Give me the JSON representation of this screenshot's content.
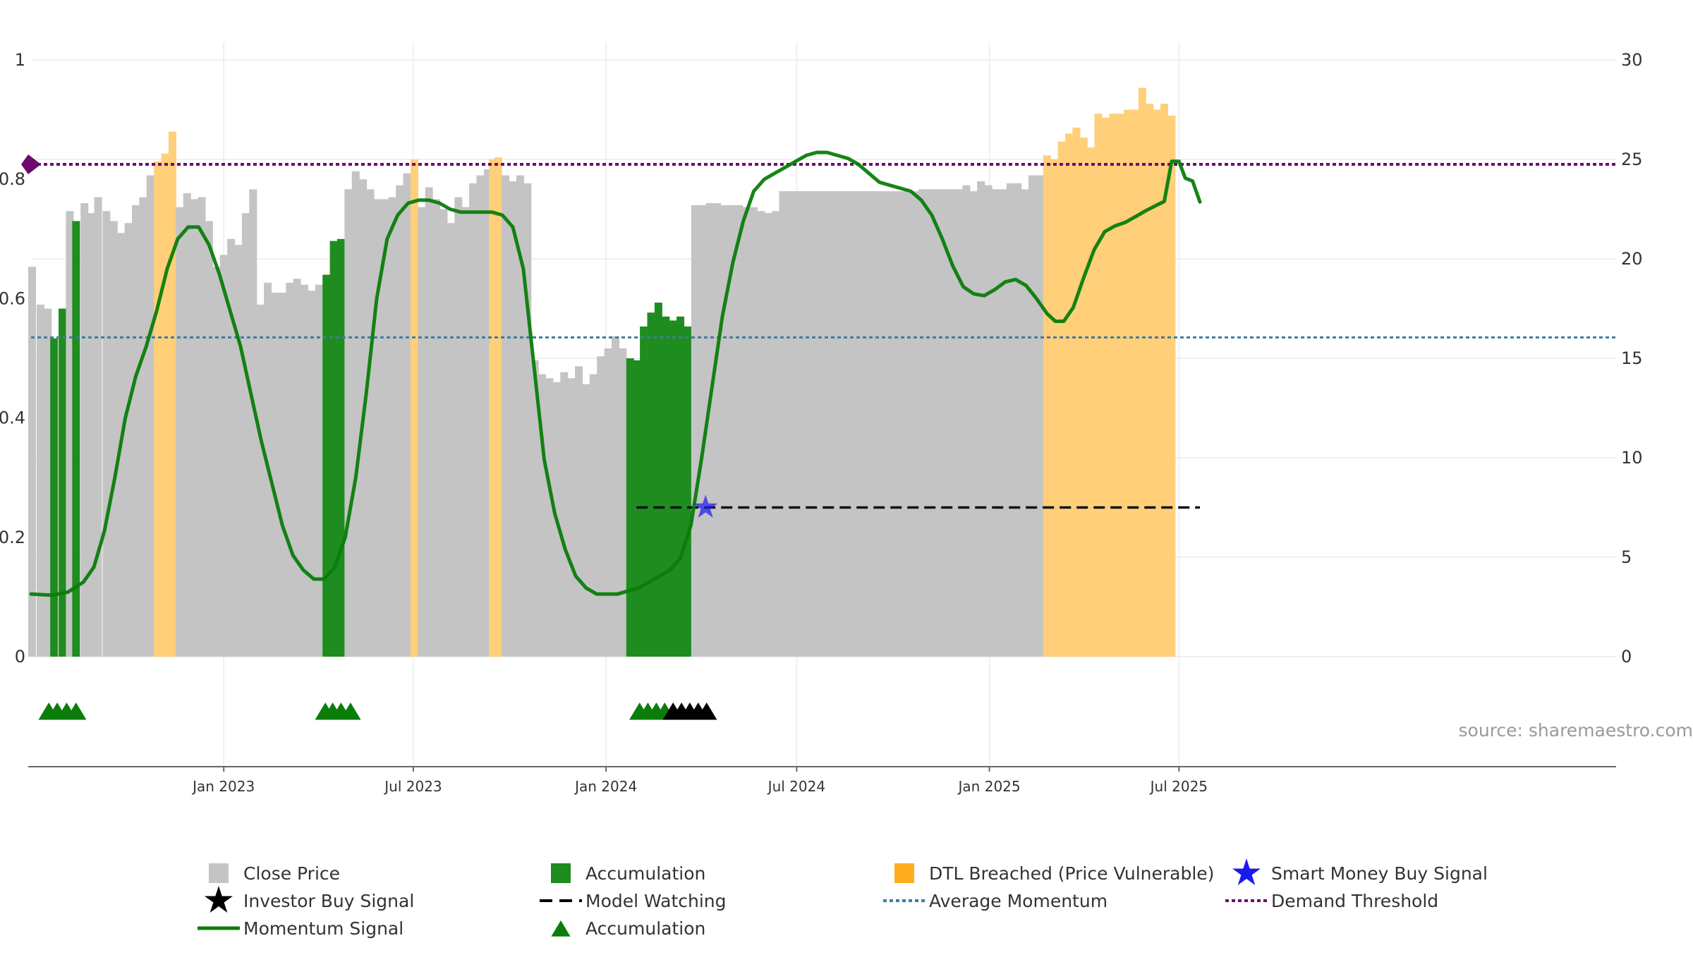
{
  "chart_data": {
    "type": "bar",
    "source_text": "source: sharemaestro.com",
    "x_ticks": [
      "Jan 2023",
      "Jul 2023",
      "Jan 2024",
      "Jul 2024",
      "Jan 2025",
      "Jul 2025"
    ],
    "left_axis": {
      "range": [
        0,
        1
      ],
      "ticks": [
        "0",
        "0.2",
        "0.4",
        "0.6",
        "0.8",
        "1"
      ]
    },
    "right_axis": {
      "range": [
        0,
        30
      ],
      "ticks": [
        "0",
        "5",
        "10",
        "15",
        "20",
        "25",
        "30"
      ]
    },
    "grid": true,
    "legend_position": "bottom",
    "x_range_days": [
      0,
      1052
    ],
    "bars": [
      {
        "x": 1,
        "v": 19.6,
        "c": "gray"
      },
      {
        "x": 9,
        "v": 17.7,
        "c": "gray"
      },
      {
        "x": 16,
        "v": 17.5,
        "c": "gray"
      },
      {
        "x": 22,
        "v": 16.0,
        "c": "green"
      },
      {
        "x": 30,
        "v": 17.5,
        "c": "green"
      },
      {
        "x": 37,
        "v": 22.4,
        "c": "gray"
      },
      {
        "x": 43,
        "v": 21.9,
        "c": "green"
      },
      {
        "x": 51,
        "v": 22.8,
        "c": "gray"
      },
      {
        "x": 58,
        "v": 22.3,
        "c": "gray"
      },
      {
        "x": 64,
        "v": 23.1,
        "c": "gray"
      },
      {
        "x": 72,
        "v": 22.4,
        "c": "gray"
      },
      {
        "x": 79,
        "v": 21.9,
        "c": "gray"
      },
      {
        "x": 86,
        "v": 21.3,
        "c": "gray"
      },
      {
        "x": 93,
        "v": 21.8,
        "c": "gray"
      },
      {
        "x": 100,
        "v": 22.7,
        "c": "gray"
      },
      {
        "x": 107,
        "v": 23.1,
        "c": "gray"
      },
      {
        "x": 114,
        "v": 24.2,
        "c": "gray"
      },
      {
        "x": 121,
        "v": 24.9,
        "c": "orange"
      },
      {
        "x": 128,
        "v": 25.3,
        "c": "orange"
      },
      {
        "x": 135,
        "v": 26.4,
        "c": "orange"
      },
      {
        "x": 142,
        "v": 22.6,
        "c": "gray"
      },
      {
        "x": 149,
        "v": 23.3,
        "c": "gray"
      },
      {
        "x": 156,
        "v": 23.0,
        "c": "gray"
      },
      {
        "x": 163,
        "v": 23.1,
        "c": "gray"
      },
      {
        "x": 170,
        "v": 21.9,
        "c": "gray"
      },
      {
        "x": 177,
        "v": 19.6,
        "c": "gray"
      },
      {
        "x": 184,
        "v": 20.2,
        "c": "gray"
      },
      {
        "x": 191,
        "v": 21.0,
        "c": "gray"
      },
      {
        "x": 198,
        "v": 20.7,
        "c": "gray"
      },
      {
        "x": 205,
        "v": 22.3,
        "c": "gray"
      },
      {
        "x": 212,
        "v": 23.5,
        "c": "gray"
      },
      {
        "x": 219,
        "v": 17.7,
        "c": "gray"
      },
      {
        "x": 226,
        "v": 18.8,
        "c": "gray"
      },
      {
        "x": 233,
        "v": 18.3,
        "c": "gray"
      },
      {
        "x": 240,
        "v": 18.3,
        "c": "gray"
      },
      {
        "x": 247,
        "v": 18.8,
        "c": "gray"
      },
      {
        "x": 254,
        "v": 19.0,
        "c": "gray"
      },
      {
        "x": 261,
        "v": 18.7,
        "c": "gray"
      },
      {
        "x": 268,
        "v": 18.4,
        "c": "gray"
      },
      {
        "x": 275,
        "v": 18.7,
        "c": "gray"
      },
      {
        "x": 282,
        "v": 19.2,
        "c": "green"
      },
      {
        "x": 289,
        "v": 20.9,
        "c": "green"
      },
      {
        "x": 296,
        "v": 21.0,
        "c": "green"
      },
      {
        "x": 303,
        "v": 23.5,
        "c": "gray"
      },
      {
        "x": 310,
        "v": 24.4,
        "c": "gray"
      },
      {
        "x": 317,
        "v": 24.0,
        "c": "gray"
      },
      {
        "x": 324,
        "v": 23.5,
        "c": "gray"
      },
      {
        "x": 331,
        "v": 23.0,
        "c": "gray"
      },
      {
        "x": 338,
        "v": 23.0,
        "c": "gray"
      },
      {
        "x": 345,
        "v": 23.1,
        "c": "gray"
      },
      {
        "x": 352,
        "v": 23.7,
        "c": "gray"
      },
      {
        "x": 359,
        "v": 24.3,
        "c": "gray"
      },
      {
        "x": 366,
        "v": 25.0,
        "c": "orange"
      },
      {
        "x": 373,
        "v": 22.6,
        "c": "gray"
      },
      {
        "x": 380,
        "v": 23.6,
        "c": "gray"
      },
      {
        "x": 387,
        "v": 23.0,
        "c": "gray"
      },
      {
        "x": 394,
        "v": 22.5,
        "c": "gray"
      },
      {
        "x": 401,
        "v": 21.8,
        "c": "gray"
      },
      {
        "x": 408,
        "v": 23.1,
        "c": "gray"
      },
      {
        "x": 415,
        "v": 22.6,
        "c": "gray"
      },
      {
        "x": 422,
        "v": 23.8,
        "c": "gray"
      },
      {
        "x": 429,
        "v": 24.2,
        "c": "gray"
      },
      {
        "x": 436,
        "v": 24.5,
        "c": "gray"
      },
      {
        "x": 441,
        "v": 25.0,
        "c": "orange"
      },
      {
        "x": 446,
        "v": 25.1,
        "c": "orange"
      },
      {
        "x": 453,
        "v": 24.2,
        "c": "gray"
      },
      {
        "x": 460,
        "v": 23.9,
        "c": "gray"
      },
      {
        "x": 467,
        "v": 24.2,
        "c": "gray"
      },
      {
        "x": 474,
        "v": 23.8,
        "c": "gray"
      },
      {
        "x": 481,
        "v": 14.9,
        "c": "gray"
      },
      {
        "x": 488,
        "v": 14.2,
        "c": "gray"
      },
      {
        "x": 495,
        "v": 14.0,
        "c": "gray"
      },
      {
        "x": 502,
        "v": 13.8,
        "c": "gray"
      },
      {
        "x": 509,
        "v": 14.3,
        "c": "gray"
      },
      {
        "x": 516,
        "v": 14.0,
        "c": "gray"
      },
      {
        "x": 523,
        "v": 14.6,
        "c": "gray"
      },
      {
        "x": 530,
        "v": 13.7,
        "c": "gray"
      },
      {
        "x": 537,
        "v": 14.2,
        "c": "gray"
      },
      {
        "x": 544,
        "v": 15.1,
        "c": "gray"
      },
      {
        "x": 551,
        "v": 15.5,
        "c": "gray"
      },
      {
        "x": 558,
        "v": 16.1,
        "c": "gray"
      },
      {
        "x": 565,
        "v": 15.5,
        "c": "gray"
      },
      {
        "x": 572,
        "v": 15.0,
        "c": "green"
      },
      {
        "x": 578,
        "v": 14.9,
        "c": "green"
      },
      {
        "x": 585,
        "v": 16.6,
        "c": "green"
      },
      {
        "x": 592,
        "v": 17.3,
        "c": "green"
      },
      {
        "x": 599,
        "v": 17.8,
        "c": "green"
      },
      {
        "x": 606,
        "v": 17.1,
        "c": "green"
      },
      {
        "x": 613,
        "v": 16.9,
        "c": "green"
      },
      {
        "x": 620,
        "v": 17.1,
        "c": "green"
      },
      {
        "x": 627,
        "v": 16.6,
        "c": "green"
      },
      {
        "x": 634,
        "v": 22.7,
        "c": "gray"
      },
      {
        "x": 641,
        "v": 22.7,
        "c": "gray"
      },
      {
        "x": 648,
        "v": 22.8,
        "c": "gray"
      },
      {
        "x": 655,
        "v": 22.8,
        "c": "gray"
      },
      {
        "x": 662,
        "v": 22.7,
        "c": "gray"
      },
      {
        "x": 669,
        "v": 22.7,
        "c": "gray"
      },
      {
        "x": 676,
        "v": 22.7,
        "c": "gray"
      },
      {
        "x": 683,
        "v": 22.6,
        "c": "gray"
      },
      {
        "x": 690,
        "v": 22.6,
        "c": "gray"
      },
      {
        "x": 697,
        "v": 22.4,
        "c": "gray"
      },
      {
        "x": 704,
        "v": 22.3,
        "c": "gray"
      },
      {
        "x": 711,
        "v": 22.4,
        "c": "gray"
      },
      {
        "x": 718,
        "v": 23.4,
        "c": "gray"
      },
      {
        "x": 725,
        "v": 23.4,
        "c": "gray"
      },
      {
        "x": 732,
        "v": 23.4,
        "c": "gray"
      },
      {
        "x": 739,
        "v": 23.4,
        "c": "gray"
      },
      {
        "x": 746,
        "v": 23.4,
        "c": "gray"
      },
      {
        "x": 753,
        "v": 23.4,
        "c": "gray"
      },
      {
        "x": 760,
        "v": 23.4,
        "c": "gray"
      },
      {
        "x": 767,
        "v": 23.4,
        "c": "gray"
      },
      {
        "x": 774,
        "v": 23.4,
        "c": "gray"
      },
      {
        "x": 781,
        "v": 23.4,
        "c": "gray"
      },
      {
        "x": 788,
        "v": 23.4,
        "c": "gray"
      },
      {
        "x": 795,
        "v": 23.4,
        "c": "gray"
      },
      {
        "x": 802,
        "v": 23.4,
        "c": "gray"
      },
      {
        "x": 809,
        "v": 23.4,
        "c": "gray"
      },
      {
        "x": 816,
        "v": 23.4,
        "c": "gray"
      },
      {
        "x": 823,
        "v": 23.4,
        "c": "gray"
      },
      {
        "x": 830,
        "v": 23.4,
        "c": "gray"
      },
      {
        "x": 837,
        "v": 23.4,
        "c": "gray"
      },
      {
        "x": 844,
        "v": 23.4,
        "c": "gray"
      },
      {
        "x": 851,
        "v": 23.5,
        "c": "gray"
      },
      {
        "x": 858,
        "v": 23.5,
        "c": "gray"
      },
      {
        "x": 865,
        "v": 23.5,
        "c": "gray"
      },
      {
        "x": 872,
        "v": 23.5,
        "c": "gray"
      },
      {
        "x": 879,
        "v": 23.5,
        "c": "gray"
      },
      {
        "x": 886,
        "v": 23.5,
        "c": "gray"
      },
      {
        "x": 893,
        "v": 23.7,
        "c": "gray"
      },
      {
        "x": 900,
        "v": 23.4,
        "c": "gray"
      },
      {
        "x": 907,
        "v": 23.9,
        "c": "gray"
      },
      {
        "x": 914,
        "v": 23.7,
        "c": "gray"
      },
      {
        "x": 921,
        "v": 23.5,
        "c": "gray"
      },
      {
        "x": 928,
        "v": 23.5,
        "c": "gray"
      },
      {
        "x": 935,
        "v": 23.8,
        "c": "gray"
      },
      {
        "x": 942,
        "v": 23.8,
        "c": "gray"
      },
      {
        "x": 949,
        "v": 23.5,
        "c": "gray"
      },
      {
        "x": 956,
        "v": 24.2,
        "c": "gray"
      },
      {
        "x": 963,
        "v": 24.2,
        "c": "gray"
      },
      {
        "x": 970,
        "v": 25.2,
        "c": "orange"
      },
      {
        "x": 977,
        "v": 25.0,
        "c": "orange"
      },
      {
        "x": 984,
        "v": 25.9,
        "c": "orange"
      },
      {
        "x": 991,
        "v": 26.3,
        "c": "orange"
      },
      {
        "x": 998,
        "v": 26.6,
        "c": "orange"
      },
      {
        "x": 1005,
        "v": 26.1,
        "c": "orange"
      },
      {
        "x": 1012,
        "v": 25.6,
        "c": "orange"
      },
      {
        "x": 1019,
        "v": 27.3,
        "c": "orange"
      },
      {
        "x": 1026,
        "v": 27.1,
        "c": "orange"
      },
      {
        "x": 1033,
        "v": 27.3,
        "c": "orange"
      },
      {
        "x": 1040,
        "v": 27.3,
        "c": "orange"
      },
      {
        "x": 1047,
        "v": 27.5,
        "c": "orange"
      },
      {
        "x": 1054,
        "v": 27.5,
        "c": "orange"
      },
      {
        "x": 1061,
        "v": 28.6,
        "c": "orange"
      },
      {
        "x": 1068,
        "v": 27.8,
        "c": "orange"
      },
      {
        "x": 1075,
        "v": 27.5,
        "c": "orange"
      },
      {
        "x": 1082,
        "v": 27.8,
        "c": "orange"
      },
      {
        "x": 1089,
        "v": 27.2,
        "c": "orange"
      }
    ],
    "momentum": [
      [
        0,
        0.105
      ],
      [
        20,
        0.103
      ],
      [
        35,
        0.108
      ],
      [
        50,
        0.125
      ],
      [
        60,
        0.15
      ],
      [
        70,
        0.21
      ],
      [
        80,
        0.3
      ],
      [
        90,
        0.4
      ],
      [
        100,
        0.47
      ],
      [
        110,
        0.52
      ],
      [
        120,
        0.58
      ],
      [
        130,
        0.65
      ],
      [
        140,
        0.7
      ],
      [
        150,
        0.72
      ],
      [
        160,
        0.72
      ],
      [
        170,
        0.69
      ],
      [
        180,
        0.64
      ],
      [
        190,
        0.58
      ],
      [
        200,
        0.52
      ],
      [
        210,
        0.44
      ],
      [
        220,
        0.36
      ],
      [
        230,
        0.29
      ],
      [
        240,
        0.22
      ],
      [
        250,
        0.17
      ],
      [
        260,
        0.145
      ],
      [
        270,
        0.13
      ],
      [
        280,
        0.13
      ],
      [
        290,
        0.15
      ],
      [
        300,
        0.2
      ],
      [
        310,
        0.3
      ],
      [
        320,
        0.44
      ],
      [
        330,
        0.6
      ],
      [
        340,
        0.7
      ],
      [
        350,
        0.74
      ],
      [
        360,
        0.76
      ],
      [
        370,
        0.765
      ],
      [
        380,
        0.765
      ],
      [
        390,
        0.76
      ],
      [
        400,
        0.75
      ],
      [
        410,
        0.745
      ],
      [
        420,
        0.745
      ],
      [
        430,
        0.745
      ],
      [
        440,
        0.745
      ],
      [
        450,
        0.74
      ],
      [
        460,
        0.72
      ],
      [
        470,
        0.65
      ],
      [
        480,
        0.49
      ],
      [
        490,
        0.33
      ],
      [
        500,
        0.24
      ],
      [
        510,
        0.18
      ],
      [
        520,
        0.135
      ],
      [
        530,
        0.115
      ],
      [
        540,
        0.105
      ],
      [
        550,
        0.105
      ],
      [
        560,
        0.105
      ],
      [
        570,
        0.11
      ],
      [
        580,
        0.115
      ],
      [
        590,
        0.125
      ],
      [
        600,
        0.135
      ],
      [
        610,
        0.145
      ],
      [
        620,
        0.165
      ],
      [
        630,
        0.22
      ],
      [
        640,
        0.33
      ],
      [
        650,
        0.45
      ],
      [
        660,
        0.57
      ],
      [
        670,
        0.66
      ],
      [
        680,
        0.73
      ],
      [
        690,
        0.78
      ],
      [
        700,
        0.8
      ],
      [
        710,
        0.81
      ],
      [
        720,
        0.82
      ],
      [
        730,
        0.83
      ],
      [
        740,
        0.84
      ],
      [
        750,
        0.845
      ],
      [
        760,
        0.845
      ],
      [
        770,
        0.84
      ],
      [
        780,
        0.835
      ],
      [
        790,
        0.825
      ],
      [
        800,
        0.81
      ],
      [
        810,
        0.795
      ],
      [
        820,
        0.79
      ],
      [
        830,
        0.785
      ],
      [
        840,
        0.78
      ],
      [
        850,
        0.765
      ],
      [
        860,
        0.74
      ],
      [
        870,
        0.7
      ],
      [
        880,
        0.655
      ],
      [
        890,
        0.62
      ],
      [
        900,
        0.608
      ],
      [
        910,
        0.605
      ],
      [
        920,
        0.615
      ],
      [
        930,
        0.628
      ],
      [
        940,
        0.632
      ],
      [
        950,
        0.622
      ],
      [
        960,
        0.6
      ],
      [
        970,
        0.575
      ],
      [
        978,
        0.562
      ],
      [
        986,
        0.562
      ],
      [
        995,
        0.585
      ],
      [
        1005,
        0.635
      ],
      [
        1015,
        0.682
      ],
      [
        1025,
        0.712
      ],
      [
        1035,
        0.722
      ],
      [
        1045,
        0.728
      ],
      [
        1055,
        0.738
      ],
      [
        1065,
        0.748
      ],
      [
        1075,
        0.757
      ],
      [
        1082,
        0.763
      ],
      [
        1089,
        0.83
      ],
      [
        1096,
        0.83
      ],
      [
        1102,
        0.802
      ],
      [
        1109,
        0.797
      ],
      [
        1116,
        0.762
      ]
    ],
    "average_momentum": 0.535,
    "demand_threshold": 0.825,
    "model_watching": {
      "start": 578,
      "end": 1116,
      "value": 0.25
    },
    "smart_money_signal": {
      "x": 644,
      "value": 0.25
    },
    "accumulation_markers": [
      17,
      25,
      34,
      43,
      281,
      288,
      296,
      305,
      581,
      589,
      597,
      605
    ],
    "investor_buy_markers": [
      613,
      621,
      629,
      637,
      645
    ],
    "legend": [
      {
        "label": "Close Price",
        "symbol": "gray-square"
      },
      {
        "label": "Accumulation",
        "symbol": "green-square"
      },
      {
        "label": "DTL Breached (Price Vulnerable)",
        "symbol": "orange-square"
      },
      {
        "label": "Smart Money Buy Signal",
        "symbol": "blue-star"
      },
      {
        "label": "Investor Buy Signal",
        "symbol": "black-star"
      },
      {
        "label": "Model Watching",
        "symbol": "black-dash"
      },
      {
        "label": "Average Momentum",
        "symbol": "blue-dot-line"
      },
      {
        "label": "Demand Threshold",
        "symbol": "purple-dot-line"
      },
      {
        "label": "Momentum Signal",
        "symbol": "green-line"
      },
      {
        "label": "Accumulation",
        "symbol": "green-triangle"
      }
    ]
  },
  "colors": {
    "gray_bar": "#c4c4c4",
    "green_bar": "#1f8c1f",
    "orange_bar": "#ffcf7a",
    "momentum": "#0a7d0a",
    "average_momentum": "#3d7d9e",
    "demand_threshold": "#6e0a6e",
    "model_watching": "#111111",
    "smart_money": "#1a1aee",
    "marker_green": "#0a7d0a",
    "marker_black": "#000000",
    "grid": "#ececec"
  }
}
